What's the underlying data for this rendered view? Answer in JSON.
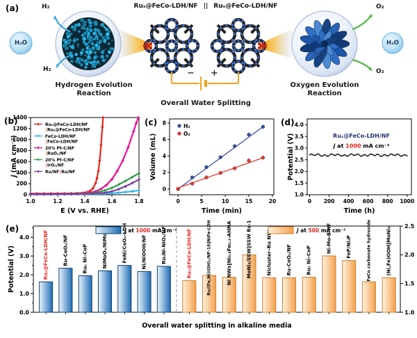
{
  "panel_a": {
    "label": "(a)",
    "electrode_left": "Ruₓ@FeCo-LDH/NF",
    "separator": "||",
    "electrode_right": "Ruₓ@FeCo-LDH/NF",
    "her_caption_line1": "Hydrogen Evolution",
    "her_caption_line2": "Reaction",
    "oer_caption_line1": "Oxygen Evolution",
    "oer_caption_line2": "Reaction",
    "overall_caption": "Overall Water Splitting",
    "h2": "H₂",
    "o2": "O₂",
    "h2o": "H₂O",
    "minus": "−",
    "plus": "+"
  },
  "panel_b": {
    "label": "(b)"
  },
  "panel_c": {
    "label": "(c)"
  },
  "panel_d": {
    "label": "(d)"
  },
  "panel_e": {
    "label": "(e)"
  },
  "chart_data": [
    {
      "id": "panel-b",
      "type": "line",
      "xlabel": "E (V vs. RHE)",
      "ylabel": "j (mA cm⁻²)",
      "ylabel_italic_first": true,
      "xlim": [
        1.0,
        1.8
      ],
      "ylim": [
        0,
        1400
      ],
      "xticks": {
        "values": [
          1.0,
          1.2,
          1.4,
          1.6,
          1.8
        ],
        "labels": [
          "1.0",
          "1.2",
          "1.4",
          "1.6",
          "1.8"
        ]
      },
      "yticks": {
        "values": [
          0,
          200,
          400,
          600,
          800,
          1000,
          1200,
          1400
        ],
        "labels": [
          "0",
          "200",
          "400",
          "600",
          "800",
          "1000",
          "1200",
          "1400"
        ]
      },
      "legend_bar_color": "#f29a93",
      "series": [
        {
          "legend1": "Ruₓ@FeCo-LDH/NF",
          "legend2": "‖Ruₓ@FeCo-LDH/NF",
          "color": "#e8251f",
          "x": [
            1.0,
            1.05,
            1.1,
            1.15,
            1.2,
            1.25,
            1.3,
            1.34,
            1.38,
            1.4,
            1.42,
            1.44,
            1.46,
            1.48,
            1.49,
            1.5,
            1.51,
            1.52,
            1.53,
            1.535
          ],
          "y": [
            22,
            22,
            22,
            23,
            23,
            24,
            25,
            27,
            32,
            38,
            48,
            70,
            115,
            210,
            300,
            430,
            620,
            900,
            1230,
            1400
          ]
        },
        {
          "legend1": "FeCo-LDH/NF",
          "legend2": "‖FeCo-LDH/NF",
          "color": "#35b5e5",
          "x": [
            1.0,
            1.05,
            1.1,
            1.15,
            1.2,
            1.25,
            1.3,
            1.35,
            1.4,
            1.45,
            1.5,
            1.55,
            1.6,
            1.65,
            1.7,
            1.75,
            1.8
          ],
          "y": [
            5,
            5,
            5,
            5,
            6,
            6,
            7,
            8,
            9,
            11,
            14,
            19,
            26,
            36,
            48,
            62,
            78
          ]
        },
        {
          "legend1": "20% Pt-C/NF",
          "legend2": "‖RuOₓ/NF",
          "color": "#ee0f90",
          "x": [
            1.0,
            1.05,
            1.1,
            1.15,
            1.2,
            1.25,
            1.3,
            1.35,
            1.4,
            1.44,
            1.48,
            1.52,
            1.56,
            1.6,
            1.64,
            1.68,
            1.72,
            1.76,
            1.78,
            1.795
          ],
          "y": [
            15,
            15,
            15,
            16,
            17,
            18,
            20,
            23,
            28,
            38,
            60,
            105,
            175,
            280,
            430,
            620,
            860,
            1150,
            1300,
            1400
          ]
        },
        {
          "legend1": "20% Pt-C/NF",
          "legend2": "‖IrOₓ/NF",
          "color": "#2f9e49",
          "x": [
            1.0,
            1.05,
            1.1,
            1.15,
            1.2,
            1.25,
            1.3,
            1.35,
            1.4,
            1.45,
            1.5,
            1.55,
            1.6,
            1.65,
            1.7,
            1.75,
            1.8
          ],
          "y": [
            10,
            10,
            10,
            11,
            12,
            13,
            14,
            17,
            21,
            30,
            48,
            80,
            125,
            185,
            250,
            320,
            390
          ]
        },
        {
          "legend1": "Ru/NF‖Ru/NF",
          "legend2": "",
          "color": "#7b3f9e",
          "x": [
            1.0,
            1.05,
            1.1,
            1.15,
            1.2,
            1.25,
            1.3,
            1.35,
            1.4,
            1.45,
            1.5,
            1.55,
            1.6,
            1.65,
            1.7,
            1.75,
            1.8
          ],
          "y": [
            8,
            8,
            8,
            9,
            9,
            10,
            11,
            12,
            15,
            19,
            26,
            38,
            60,
            100,
            152,
            212,
            275
          ]
        }
      ]
    },
    {
      "id": "panel-c",
      "type": "scatter",
      "xlabel": "Time (min)",
      "ylabel": "Volume (mL)",
      "xlim": [
        -1.8,
        20.3
      ],
      "ylim": [
        -0.7,
        8.5
      ],
      "xticks": {
        "values": [
          0,
          5,
          10,
          15,
          20
        ],
        "labels": [
          "0",
          "5",
          "10",
          "15",
          "20"
        ]
      },
      "yticks": {
        "values": [
          0,
          2,
          4,
          6,
          8
        ],
        "labels": [
          "0",
          "2",
          "4",
          "6",
          "8"
        ]
      },
      "series": [
        {
          "name": "H₂",
          "color": "#3a50a8",
          "x": [
            0,
            3,
            6,
            9,
            12,
            15,
            18
          ],
          "y": [
            0,
            1.4,
            2.65,
            3.85,
            5.2,
            6.6,
            7.55
          ],
          "fit": [
            [
              0,
              0
            ],
            [
              18,
              7.55
            ]
          ]
        },
        {
          "name": "O₂",
          "color": "#ee3b32",
          "x": [
            0,
            3,
            6,
            9,
            12,
            15,
            18
          ],
          "y": [
            0,
            0.65,
            1.4,
            1.95,
            2.5,
            3.45,
            3.8
          ],
          "fit": [
            [
              0,
              0.12
            ],
            [
              18,
              3.78
            ]
          ]
        }
      ]
    },
    {
      "id": "panel-d",
      "type": "stability",
      "xlabel": "Time (h)",
      "ylabel": "Potential (V)",
      "xlim": [
        -25,
        1045
      ],
      "ylim": [
        1.0,
        4.25
      ],
      "xticks": {
        "values": [
          0,
          200,
          400,
          600,
          800,
          1000
        ],
        "labels": [
          "0",
          "200",
          "400",
          "600",
          "800",
          "1000"
        ]
      },
      "yticks": {
        "values": [
          1.0,
          1.5,
          2.0,
          2.5,
          3.0,
          3.5,
          4.0
        ],
        "labels": [
          "1.0",
          "1.5",
          "2.0",
          "2.5",
          "3.0",
          "3.5",
          "4.0"
        ]
      },
      "baseline_v": 2.7,
      "time_end": 1000,
      "point_color": "#1a1a1a",
      "annotation": {
        "line1": "Ruₓ@FeCo-LDH/NF",
        "line1_color": "#26356e",
        "j": "j",
        "at": " at ",
        "value": "1000",
        "unit": " mA cm⁻²",
        "value_color": "#e8251f"
      }
    },
    {
      "id": "panel-e",
      "type": "bar-dual",
      "xlabel": "Overall water splitting in alkaline media",
      "ylabel": "Potential (V)",
      "left_axis": {
        "min": 0,
        "max": 4.6,
        "ticks": {
          "values": [
            0,
            1,
            2,
            3,
            4
          ],
          "labels": [
            "0.0",
            "1.0",
            "2.0",
            "3.0",
            "4.0"
          ]
        }
      },
      "right_axis": {
        "min": 1.0,
        "max": 2.5,
        "ticks": {
          "values": [
            1.0,
            1.5,
            2.0,
            2.5
          ],
          "labels": [
            "1.0",
            "1.5",
            "2.0",
            "2.5"
          ]
        }
      },
      "legend_left": {
        "j": "j",
        "at": " at ",
        "value": "1000",
        "unit": " mA cm⁻²",
        "value_color": "#e8251f"
      },
      "legend_right": {
        "j": "j",
        "at": " at ",
        "value": "500",
        "unit": " mA cm⁻²",
        "value_color": "#e8251f"
      },
      "highlight_color": "#e8251f",
      "blue_gradient": [
        "#eaf5fd",
        "#1f6cb4"
      ],
      "blue_border": "#123f6e",
      "orange_gradient": [
        "#fdf3e2",
        "#f3a04c"
      ],
      "orange_border": "#cc8030",
      "blue_bars": [
        {
          "label": "Ruₓ@FeCo-LDH/NF",
          "value": 1.62,
          "highlight": true
        },
        {
          "label": "Ru-CoOₓ/NF",
          "value": 2.35
        },
        {
          "label": "Ruₓ Ni–CoP",
          "value": 1.95
        },
        {
          "label": "NiMoOₓ/NiMoS",
          "value": 2.21
        },
        {
          "label": "FeNi/CoOₓ-LDH",
          "value": 2.5
        },
        {
          "label": "Ni/NiOOH/NF",
          "value": 2.17
        },
        {
          "label": "RuₓNi-NiOₓ/NF",
          "value": 2.45
        }
      ],
      "orange_bars": [
        {
          "label": "Ruₓ@FeCo-LDH/NF",
          "value": 1.55,
          "highlight": true
        },
        {
          "label": "Ru/(Fe,Ni)(OH)₂/NF-10‖NiFe-LDH",
          "value": 1.64
        },
        {
          "label": "Ni NWs‖Ni₀.₈Fe₀.₂-AHNA",
          "value": 1.61
        },
        {
          "label": "MoNi₄/SSW‖SSW Rs-12h",
          "value": 2.0
        },
        {
          "label": "Nicluster–Ru NWs",
          "value": 1.6
        },
        {
          "label": "Ru-CoOₓ/NF",
          "value": 1.6
        },
        {
          "label": "Ruₓ Ni–CoP",
          "value": 1.61
        },
        {
          "label": "Ni-Mo-B HF",
          "value": 1.98
        },
        {
          "label": "FeP/Ni₂P",
          "value": 1.9
        },
        {
          "label": "FeCo carbonate hydroxide",
          "value": 1.53
        },
        {
          "label": "(Ni,Fe)OOH‖MoNi₄",
          "value": 1.6
        }
      ]
    }
  ]
}
